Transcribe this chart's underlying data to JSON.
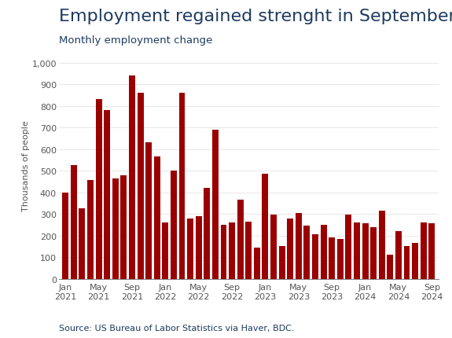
{
  "title": "Employment regained strenght in September",
  "subtitle": "Monthly employment change",
  "ylabel": "Thousands of people",
  "source": "Source: US Bureau of Labor Statistics via Haver, BDC.",
  "bar_color": "#9b0000",
  "background_color": "#ffffff",
  "title_color": "#1e3a5f",
  "subtitle_color": "#1e3a5f",
  "source_color": "#1e3a5f",
  "ylim": [
    0,
    1050
  ],
  "yticks": [
    0,
    100,
    200,
    300,
    400,
    500,
    600,
    700,
    800,
    900,
    1000
  ],
  "ytick_labels": [
    "0",
    "100",
    "200",
    "300",
    "400",
    "500",
    "600",
    "700",
    "800",
    "900",
    "1,000"
  ],
  "values": [
    400,
    525,
    325,
    455,
    830,
    780,
    465,
    480,
    940,
    860,
    630,
    565,
    260,
    500,
    860,
    280,
    290,
    420,
    690,
    250,
    260,
    365,
    265,
    145,
    485,
    295,
    150,
    280,
    305,
    245,
    205,
    250,
    190,
    185,
    295,
    260,
    255,
    240,
    315,
    110,
    220,
    150,
    165,
    260,
    255
  ],
  "xtick_positions": [
    0,
    4,
    8,
    12,
    16,
    20,
    24,
    28,
    32,
    36,
    40,
    44
  ],
  "xtick_labels": [
    "Jan\n2021",
    "May\n2021",
    "Sep\n2021",
    "Jan\n2022",
    "May\n2022",
    "Sep\n2022",
    "Jan\n2023",
    "May\n2023",
    "Sep\n2023",
    "Jan\n2024",
    "May\n2024",
    "Sep\n2024"
  ],
  "title_fontsize": 16,
  "subtitle_fontsize": 9.5,
  "ylabel_fontsize": 8,
  "tick_fontsize": 8,
  "source_fontsize": 8
}
